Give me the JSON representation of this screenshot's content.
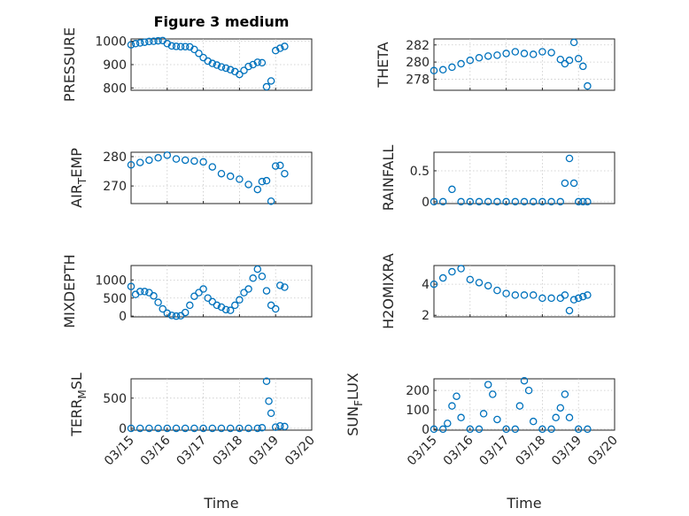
{
  "chart_data": [
    {
      "type": "scatter",
      "title": "Figure 3 medium",
      "ylabel": "PRESSURE",
      "ylim": [
        790,
        1010
      ],
      "yticks": [
        800,
        900,
        1000
      ],
      "grid": true,
      "x": [
        "03/15 00:00",
        "03/15 03:00",
        "03/15 06:00",
        "03/15 09:00",
        "03/15 12:00",
        "03/15 15:00",
        "03/15 18:00",
        "03/15 21:00",
        "03/16 00:00",
        "03/16 03:00",
        "03/16 06:00",
        "03/16 09:00",
        "03/16 12:00",
        "03/16 15:00",
        "03/16 18:00",
        "03/16 21:00",
        "03/17 00:00",
        "03/17 03:00",
        "03/17 06:00",
        "03/17 09:00",
        "03/17 12:00",
        "03/17 15:00",
        "03/17 18:00",
        "03/17 21:00",
        "03/18 00:00",
        "03/18 03:00",
        "03/18 06:00",
        "03/18 09:00",
        "03/18 12:00",
        "03/18 15:00",
        "03/18 18:00",
        "03/18 21:00",
        "03/19 00:00",
        "03/19 03:00",
        "03/19 06:00"
      ],
      "y": [
        985,
        990,
        993,
        996,
        999,
        1000,
        1002,
        1003,
        990,
        980,
        978,
        977,
        977,
        976,
        965,
        948,
        930,
        915,
        905,
        898,
        890,
        885,
        878,
        870,
        858,
        875,
        892,
        900,
        910,
        908,
        805,
        830,
        960,
        970,
        978
      ]
    },
    {
      "type": "scatter",
      "ylabel": "THETA",
      "ylim": [
        276.7,
        282.7
      ],
      "yticks": [
        278,
        280,
        282
      ],
      "grid": true,
      "x": [
        "03/15 00:00",
        "03/15 06:00",
        "03/15 12:00",
        "03/15 18:00",
        "03/16 00:00",
        "03/16 06:00",
        "03/16 12:00",
        "03/16 18:00",
        "03/17 00:00",
        "03/17 06:00",
        "03/17 12:00",
        "03/17 18:00",
        "03/18 00:00",
        "03/18 06:00",
        "03/18 12:00",
        "03/18 15:00",
        "03/18 18:00",
        "03/18 21:00",
        "03/19 00:00",
        "03/19 03:00",
        "03/19 06:00"
      ],
      "y": [
        279.0,
        279.1,
        279.4,
        279.8,
        280.2,
        280.5,
        280.7,
        280.8,
        281.0,
        281.2,
        281.0,
        280.9,
        281.2,
        281.1,
        280.3,
        279.8,
        280.2,
        282.3,
        280.4,
        279.5,
        277.2
      ]
    },
    {
      "type": "scatter",
      "ylabel": "AIR_TEMP",
      "ylim": [
        264,
        281.5
      ],
      "yticks": [
        270,
        280
      ],
      "grid": true,
      "x": [
        "03/15 00:00",
        "03/15 06:00",
        "03/15 12:00",
        "03/15 18:00",
        "03/16 00:00",
        "03/16 06:00",
        "03/16 12:00",
        "03/16 18:00",
        "03/17 00:00",
        "03/17 06:00",
        "03/17 12:00",
        "03/17 18:00",
        "03/18 00:00",
        "03/18 06:00",
        "03/18 12:00",
        "03/18 15:00",
        "03/18 18:00",
        "03/18 21:00",
        "03/19 00:00",
        "03/19 03:00",
        "03/19 06:00"
      ],
      "y": [
        277.2,
        278,
        278.8,
        279.6,
        280.5,
        279.2,
        278.8,
        278.5,
        278.2,
        276.5,
        274.2,
        273.3,
        272.3,
        270.5,
        268.8,
        271.5,
        271.8,
        264.8,
        276.8,
        277.0,
        274.2
      ]
    },
    {
      "type": "scatter",
      "ylabel": "RAINFALL",
      "ylim": [
        -0.03,
        0.8
      ],
      "yticks": [
        0,
        0.5
      ],
      "grid": true,
      "x": [
        "03/15 00:00",
        "03/15 06:00",
        "03/15 12:00",
        "03/15 18:00",
        "03/16 00:00",
        "03/16 06:00",
        "03/16 12:00",
        "03/16 18:00",
        "03/17 00:00",
        "03/17 06:00",
        "03/17 12:00",
        "03/17 18:00",
        "03/18 00:00",
        "03/18 06:00",
        "03/18 12:00",
        "03/18 15:00",
        "03/18 18:00",
        "03/18 21:00",
        "03/19 00:00",
        "03/19 03:00",
        "03/19 06:00"
      ],
      "y": [
        0,
        0,
        0.2,
        0,
        0,
        0,
        0,
        0,
        0,
        0,
        0,
        0,
        0,
        0,
        0,
        0.3,
        0.7,
        0.3,
        0,
        0,
        0
      ]
    },
    {
      "type": "scatter",
      "ylabel": "MIXDEPTH",
      "ylim": [
        -20,
        1400
      ],
      "yticks": [
        0,
        500,
        1000
      ],
      "grid": true,
      "x": [
        "03/15 00:00",
        "03/15 03:00",
        "03/15 06:00",
        "03/15 09:00",
        "03/15 12:00",
        "03/15 15:00",
        "03/15 18:00",
        "03/15 21:00",
        "03/16 00:00",
        "03/16 03:00",
        "03/16 06:00",
        "03/16 09:00",
        "03/16 12:00",
        "03/16 15:00",
        "03/16 18:00",
        "03/16 21:00",
        "03/17 00:00",
        "03/17 03:00",
        "03/17 06:00",
        "03/17 09:00",
        "03/17 12:00",
        "03/17 15:00",
        "03/17 18:00",
        "03/17 21:00",
        "03/18 00:00",
        "03/18 03:00",
        "03/18 06:00",
        "03/18 09:00",
        "03/18 12:00",
        "03/18 15:00",
        "03/18 18:00",
        "03/18 21:00",
        "03/19 00:00",
        "03/19 03:00",
        "03/19 06:00"
      ],
      "y": [
        820,
        600,
        680,
        680,
        650,
        560,
        380,
        200,
        80,
        20,
        0,
        10,
        100,
        300,
        550,
        650,
        750,
        500,
        400,
        300,
        250,
        180,
        160,
        300,
        450,
        650,
        750,
        1050,
        1300,
        1100,
        700,
        300,
        200,
        850,
        800
      ]
    },
    {
      "type": "scatter",
      "ylabel": "H2OMIXRA",
      "ylim": [
        1.9,
        5.2
      ],
      "yticks": [
        2,
        4
      ],
      "grid": true,
      "x": [
        "03/15 00:00",
        "03/15 06:00",
        "03/15 12:00",
        "03/15 18:00",
        "03/16 00:00",
        "03/16 06:00",
        "03/16 12:00",
        "03/16 18:00",
        "03/17 00:00",
        "03/17 06:00",
        "03/17 12:00",
        "03/17 18:00",
        "03/18 00:00",
        "03/18 06:00",
        "03/18 12:00",
        "03/18 15:00",
        "03/18 18:00",
        "03/18 21:00",
        "03/19 00:00",
        "03/19 03:00",
        "03/19 06:00"
      ],
      "y": [
        4.0,
        4.4,
        4.8,
        5.0,
        4.3,
        4.1,
        3.9,
        3.6,
        3.4,
        3.3,
        3.3,
        3.3,
        3.1,
        3.1,
        3.1,
        3.3,
        2.3,
        3.0,
        3.1,
        3.2,
        3.3
      ]
    },
    {
      "type": "scatter",
      "ylabel": "TERR_MSL",
      "ylim": [
        -30,
        820
      ],
      "yticks": [
        0,
        500
      ],
      "grid": true,
      "x": [
        "03/15 00:00",
        "03/15 06:00",
        "03/15 12:00",
        "03/15 18:00",
        "03/16 00:00",
        "03/16 06:00",
        "03/16 12:00",
        "03/16 18:00",
        "03/17 00:00",
        "03/17 06:00",
        "03/17 12:00",
        "03/17 18:00",
        "03/18 00:00",
        "03/18 06:00",
        "03/18 12:00",
        "03/18 15:00",
        "03/18 18:00",
        "03/18 19:30",
        "03/18 21:00",
        "03/19 00:00",
        "03/19 03:00",
        "03/19 06:00"
      ],
      "y": [
        0,
        0,
        0,
        0,
        0,
        0,
        0,
        0,
        0,
        0,
        0,
        0,
        0,
        0,
        0,
        10,
        780,
        450,
        250,
        20,
        40,
        30
      ]
    },
    {
      "type": "scatter",
      "ylabel": "SUN_FLUX",
      "ylim": [
        -5,
        260
      ],
      "yticks": [
        0,
        100,
        200
      ],
      "grid": true,
      "x": [
        "03/15 00:00",
        "03/15 06:00",
        "03/15 09:00",
        "03/15 12:00",
        "03/15 15:00",
        "03/15 18:00",
        "03/16 00:00",
        "03/16 06:00",
        "03/16 09:00",
        "03/16 12:00",
        "03/16 15:00",
        "03/16 18:00",
        "03/17 00:00",
        "03/17 06:00",
        "03/17 09:00",
        "03/17 12:00",
        "03/17 15:00",
        "03/17 18:00",
        "03/18 00:00",
        "03/18 06:00",
        "03/18 09:00",
        "03/18 12:00",
        "03/18 15:00",
        "03/18 18:00",
        "03/19 00:00",
        "03/19 06:00"
      ],
      "y": [
        0,
        0,
        30,
        120,
        170,
        60,
        0,
        0,
        80,
        230,
        180,
        50,
        0,
        0,
        120,
        250,
        200,
        40,
        0,
        0,
        60,
        110,
        180,
        60,
        0,
        0
      ]
    }
  ],
  "xaxis": {
    "label": "Time",
    "ticks": [
      "03/15",
      "03/16",
      "03/17",
      "03/18",
      "03/19",
      "03/20"
    ],
    "range": [
      "03/15",
      "03/20"
    ]
  },
  "ylabel_display": [
    "PRESSURE",
    "THETA",
    "AIR",
    "T",
    "EMP",
    "RAINFALL",
    "MIXDEPTH",
    "H2OMIXRA",
    "TERR",
    "M",
    "SL",
    "SUN",
    "F",
    "LUX"
  ],
  "colors": {
    "marker": "#0072bd",
    "axis": "#262626",
    "grid": "#c8c8c8"
  }
}
